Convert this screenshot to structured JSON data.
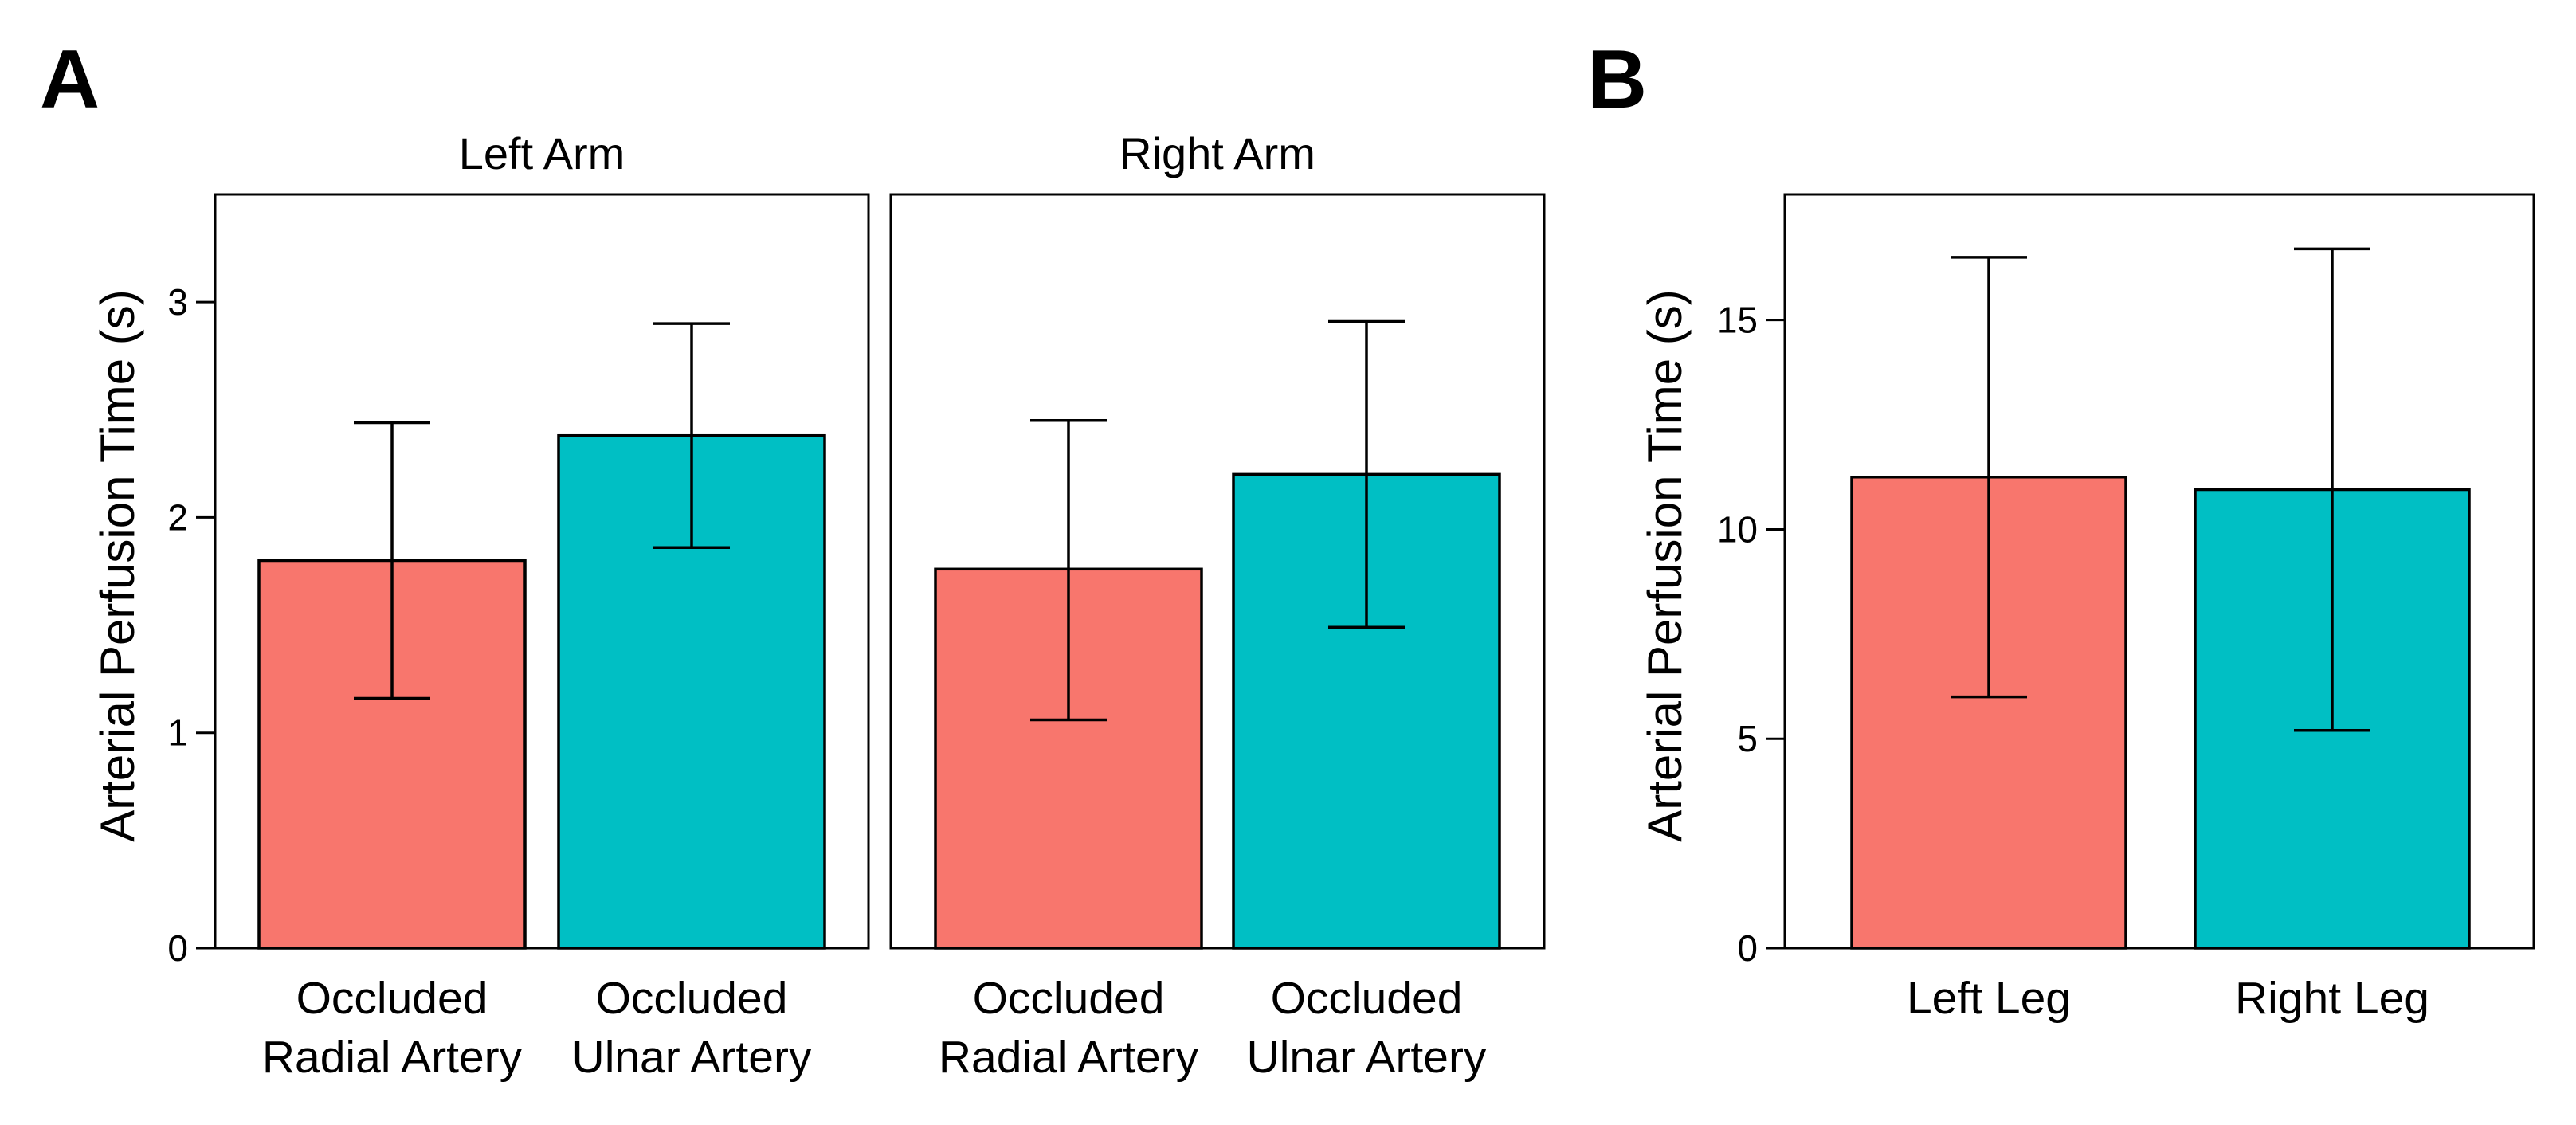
{
  "colors": {
    "bar1": "#F8766D",
    "bar2": "#00BFC4"
  },
  "chart_data": [
    {
      "type": "bar",
      "panel_label": "A",
      "ylabel": "Arterial Perfusion Time (s)",
      "ylim": [
        0,
        3.5
      ],
      "yticks": [
        "0",
        "1",
        "2",
        "3"
      ],
      "yticks_values": [
        0,
        1,
        2,
        3
      ],
      "grid": false,
      "facets": [
        {
          "title": "Left Arm",
          "categories": [
            [
              "Occluded",
              "Radial Artery"
            ],
            [
              "Occluded",
              "Ulnar Artery"
            ]
          ],
          "values": [
            1.8,
            2.38
          ],
          "error_low": [
            1.16,
            1.86
          ],
          "error_high": [
            2.44,
            2.9
          ]
        },
        {
          "title": "Right Arm",
          "categories": [
            [
              "Occluded",
              "Radial Artery"
            ],
            [
              "Occluded",
              "Ulnar Artery"
            ]
          ],
          "values": [
            1.76,
            2.2
          ],
          "error_low": [
            1.06,
            1.49
          ],
          "error_high": [
            2.45,
            2.91
          ]
        }
      ]
    },
    {
      "type": "bar",
      "panel_label": "B",
      "ylabel": "Arterial Perfusion Time (s)",
      "ylim": [
        0,
        18
      ],
      "yticks": [
        "0",
        "5",
        "10",
        "15"
      ],
      "yticks_values": [
        0,
        5,
        10,
        15
      ],
      "grid": false,
      "facets": [
        {
          "title": "",
          "categories": [
            [
              "Left Leg"
            ],
            [
              "Right Leg"
            ]
          ],
          "values": [
            11.25,
            10.95
          ],
          "error_low": [
            6.0,
            5.2
          ],
          "error_high": [
            16.5,
            16.7
          ]
        }
      ]
    }
  ]
}
